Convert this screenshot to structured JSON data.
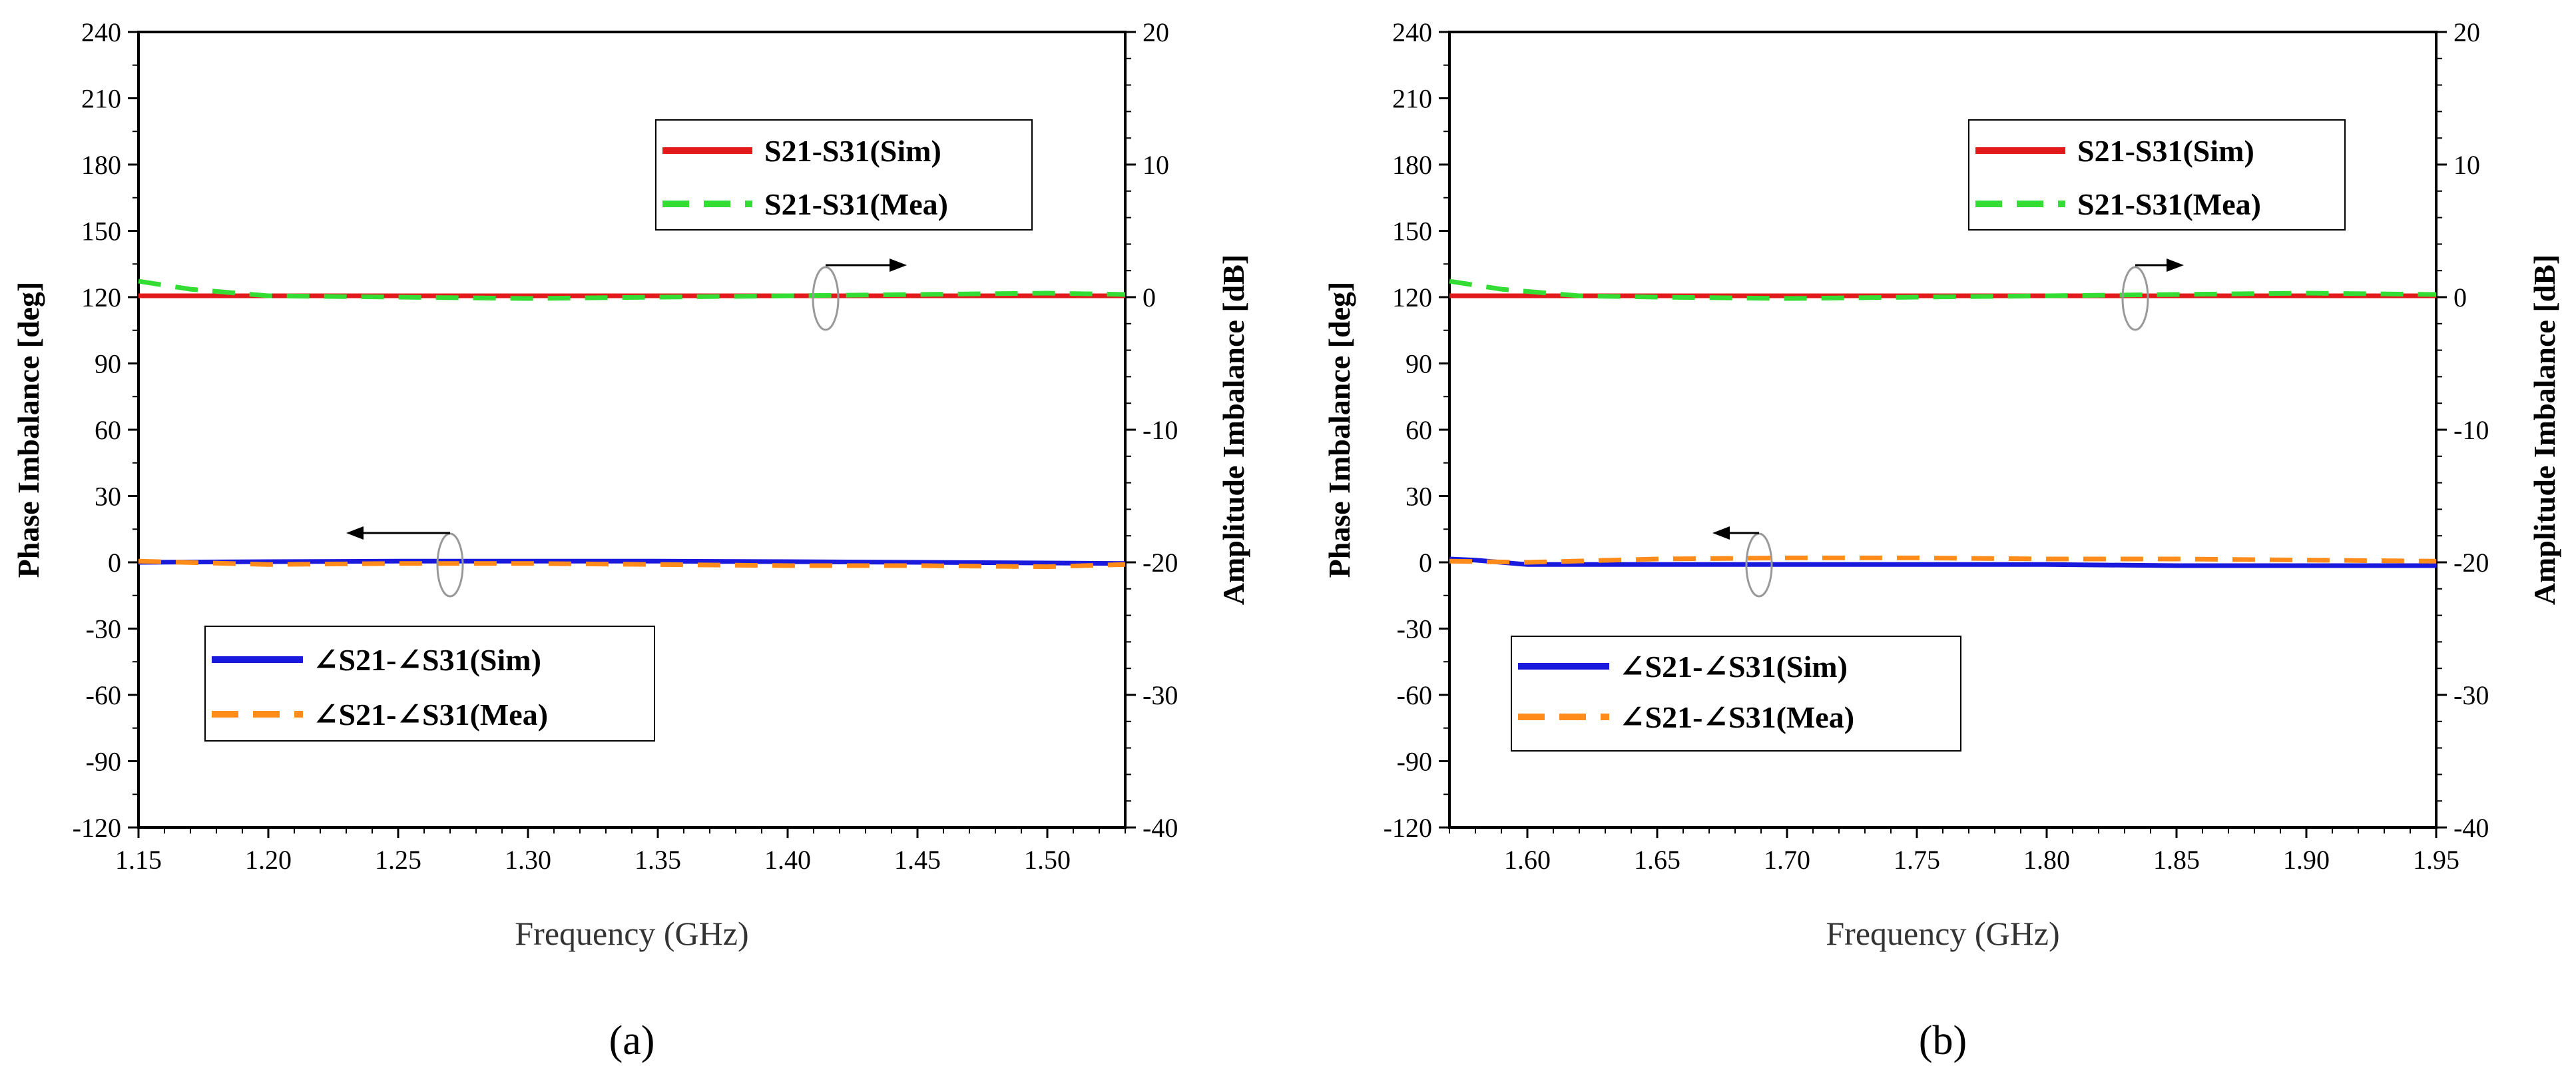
{
  "chart_data": [
    {
      "type": "line",
      "panel_label": "(a)",
      "xlabel": "Frequency (GHz)",
      "ylabel_left": "Phase Imbalance [deg]",
      "ylabel_right": "Amplitude Imbalance [dB]",
      "xlim": [
        1.15,
        1.53
      ],
      "xticks": [
        1.15,
        1.2,
        1.25,
        1.3,
        1.35,
        1.4,
        1.45,
        1.5
      ],
      "xtick_labels": [
        "1.15",
        "1.20",
        "1.25",
        "1.30",
        "1.35",
        "1.40",
        "1.45",
        "1.50"
      ],
      "ylim_left": [
        -120,
        240
      ],
      "yticks_left": [
        240,
        210,
        180,
        150,
        120,
        90,
        60,
        30,
        0,
        -30,
        -60,
        -90,
        -120
      ],
      "ylim_right": [
        -40,
        20
      ],
      "yticks_right": [
        20,
        10,
        0,
        -10,
        -20,
        -30,
        -40
      ],
      "legend_top": "top-right",
      "legend_bottom": "bottom-left",
      "series": [
        {
          "name": "S21-S31(Sim)",
          "axis": "right",
          "color": "#e31a1c",
          "style": "solid",
          "x": [
            1.15,
            1.2,
            1.25,
            1.3,
            1.35,
            1.4,
            1.45,
            1.5,
            1.53
          ],
          "y": [
            0.1,
            0.1,
            0.1,
            0.1,
            0.1,
            0.1,
            0.1,
            0.1,
            0.1
          ]
        },
        {
          "name": "S21-S31(Mea)",
          "axis": "right",
          "color": "#33dd33",
          "style": "dashed",
          "x": [
            1.15,
            1.17,
            1.2,
            1.25,
            1.3,
            1.35,
            1.4,
            1.45,
            1.5,
            1.53
          ],
          "y": [
            1.2,
            0.6,
            0.1,
            0.0,
            -0.1,
            0.0,
            0.1,
            0.2,
            0.3,
            0.2
          ]
        },
        {
          "name": "∠S21-∠S31(Sim)",
          "axis": "left",
          "color": "#1a1adc",
          "style": "solid",
          "x": [
            1.15,
            1.2,
            1.25,
            1.3,
            1.35,
            1.4,
            1.45,
            1.5,
            1.53
          ],
          "y": [
            0,
            0.3,
            0.5,
            0.5,
            0.5,
            0.3,
            0,
            -0.3,
            -0.5
          ]
        },
        {
          "name": "∠S21-∠S31(Mea)",
          "axis": "left",
          "color": "#ff8c1a",
          "style": "dashed",
          "x": [
            1.15,
            1.2,
            1.25,
            1.3,
            1.35,
            1.4,
            1.45,
            1.5,
            1.53
          ],
          "y": [
            0.5,
            -1,
            -0.5,
            -0.5,
            -1,
            -1.5,
            -1.5,
            -2,
            -1
          ]
        }
      ]
    },
    {
      "type": "line",
      "panel_label": "(b)",
      "xlabel": "Frequency (GHz)",
      "ylabel_left": "Phase Imbalance [deg]",
      "ylabel_right": "Amplitude Imbalance [dB]",
      "xlim": [
        1.57,
        1.95
      ],
      "xticks": [
        1.6,
        1.65,
        1.7,
        1.75,
        1.8,
        1.85,
        1.9,
        1.95
      ],
      "xtick_labels": [
        "1.60",
        "1.65",
        "1.70",
        "1.75",
        "1.80",
        "1.85",
        "1.90",
        "1.95"
      ],
      "ylim_left": [
        -120,
        240
      ],
      "yticks_left": [
        240,
        210,
        180,
        150,
        120,
        90,
        60,
        30,
        0,
        -30,
        -60,
        -90,
        -120
      ],
      "ylim_right": [
        -40,
        20
      ],
      "yticks_right": [
        20,
        10,
        0,
        -10,
        -20,
        -30,
        -40
      ],
      "legend_top": "top-right",
      "legend_bottom": "bottom-left",
      "series": [
        {
          "name": "S21-S31(Sim)",
          "axis": "right",
          "color": "#e31a1c",
          "style": "solid",
          "x": [
            1.57,
            1.65,
            1.75,
            1.85,
            1.95
          ],
          "y": [
            0.1,
            0.1,
            0.1,
            0.1,
            0.1
          ]
        },
        {
          "name": "S21-S31(Mea)",
          "axis": "right",
          "color": "#33dd33",
          "style": "dashed",
          "x": [
            1.57,
            1.59,
            1.62,
            1.65,
            1.7,
            1.75,
            1.8,
            1.85,
            1.9,
            1.95
          ],
          "y": [
            1.2,
            0.6,
            0.1,
            0.0,
            -0.1,
            0.0,
            0.1,
            0.2,
            0.3,
            0.2
          ]
        },
        {
          "name": "∠S21-∠S31(Sim)",
          "axis": "left",
          "color": "#1a1adc",
          "style": "solid",
          "x": [
            1.57,
            1.58,
            1.6,
            1.65,
            1.7,
            1.75,
            1.8,
            1.85,
            1.9,
            1.95
          ],
          "y": [
            1.5,
            1,
            -1,
            -1,
            -1,
            -1,
            -1,
            -1.5,
            -1.5,
            -1.5
          ]
        },
        {
          "name": "∠S21-∠S31(Mea)",
          "axis": "left",
          "color": "#ff8c1a",
          "style": "dashed",
          "x": [
            1.57,
            1.6,
            1.65,
            1.7,
            1.75,
            1.8,
            1.85,
            1.9,
            1.95
          ],
          "y": [
            0.5,
            0,
            1.5,
            2,
            2,
            1.5,
            1.5,
            1,
            0.5
          ]
        }
      ]
    }
  ]
}
